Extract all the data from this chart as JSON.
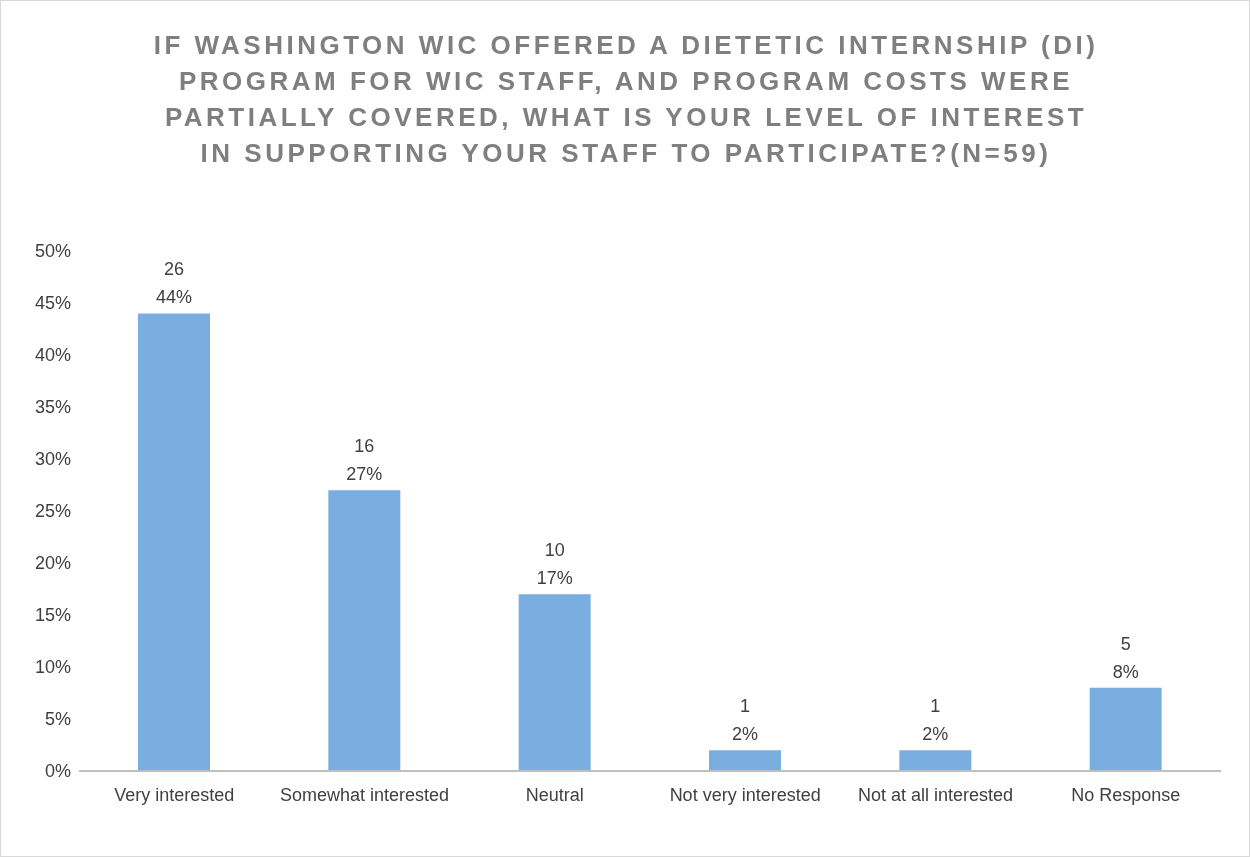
{
  "chart_data": {
    "type": "bar",
    "title": "IF WASHINGTON WIC OFFERED A DIETETIC INTERNSHIP (DI) PROGRAM FOR WIC STAFF, AND PROGRAM COSTS WERE PARTIALLY COVERED, WHAT IS YOUR LEVEL OF INTEREST IN SUPPORTING YOUR STAFF TO PARTICIPATE?(N=59)",
    "categories": [
      "Very interested",
      "Somewhat interested",
      "Neutral",
      "Not very interested",
      "Not at all interested",
      "No Response"
    ],
    "values": [
      44,
      27,
      17,
      2,
      2,
      8
    ],
    "value_labels": [
      "26\n44%",
      "16\n27%",
      "10\n17%",
      "1\n2%",
      "1\n2%",
      "5\n8%"
    ],
    "color": "#7aaee0",
    "ylim": [
      0,
      50
    ],
    "yticks": [
      {
        "value": 0,
        "label": "0%"
      },
      {
        "value": 5,
        "label": "5%"
      },
      {
        "value": 10,
        "label": "10%"
      },
      {
        "value": 15,
        "label": "15%"
      },
      {
        "value": 20,
        "label": "20%"
      },
      {
        "value": 25,
        "label": "25%"
      },
      {
        "value": 30,
        "label": "30%"
      },
      {
        "value": 35,
        "label": "35%"
      },
      {
        "value": 40,
        "label": "40%"
      },
      {
        "value": 45,
        "label": "45%"
      },
      {
        "value": 50,
        "label": "50%"
      }
    ],
    "grid": false,
    "legend": false
  }
}
